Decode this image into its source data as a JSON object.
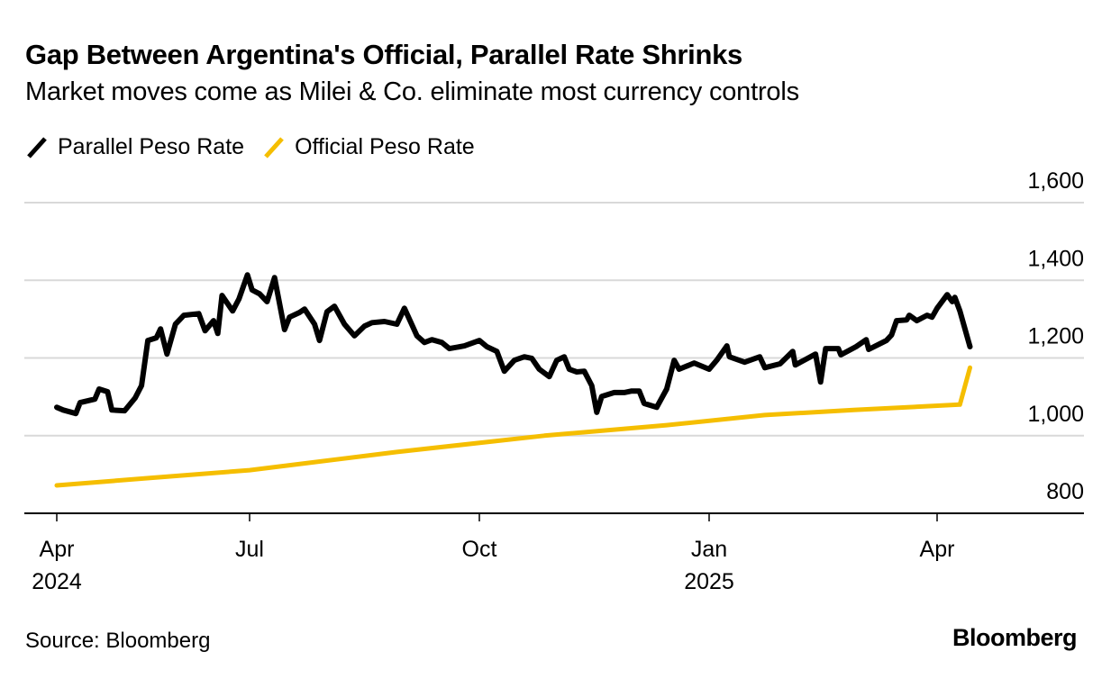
{
  "chart_data": {
    "type": "line",
    "title": "Gap Between Argentina's Official, Parallel Rate Shrinks",
    "subtitle": "Market moves come as Milei & Co. eliminate most currency controls",
    "xlabel": "",
    "ylabel": "",
    "ylim": [
      800,
      1600
    ],
    "yticks": [
      800,
      1000,
      1200,
      1400,
      1600
    ],
    "ytick_labels": [
      "800",
      "1,000",
      "1,200",
      "1,400",
      "1,600"
    ],
    "xlim": [
      "2024-03-19",
      "2025-06-17"
    ],
    "xticks": [
      {
        "date": "2024-04-01",
        "label": "Apr",
        "sublabel": "2024"
      },
      {
        "date": "2024-07-01",
        "label": "Jul",
        "sublabel": ""
      },
      {
        "date": "2024-10-01",
        "label": "Oct",
        "sublabel": ""
      },
      {
        "date": "2025-01-01",
        "label": "Jan",
        "sublabel": "2025"
      },
      {
        "date": "2025-04-01",
        "label": "Apr",
        "sublabel": ""
      }
    ],
    "grid": true,
    "legend_position": "top-left",
    "series": [
      {
        "name": "Parallel Peso Rate",
        "color": "#000000",
        "points": [
          [
            "2024-04-01",
            1073
          ],
          [
            "2024-04-04",
            1066
          ],
          [
            "2024-04-10",
            1057
          ],
          [
            "2024-04-12",
            1085
          ],
          [
            "2024-04-19",
            1094
          ],
          [
            "2024-04-21",
            1120
          ],
          [
            "2024-04-25",
            1113
          ],
          [
            "2024-04-27",
            1066
          ],
          [
            "2024-05-03",
            1064
          ],
          [
            "2024-05-08",
            1097
          ],
          [
            "2024-05-11",
            1129
          ],
          [
            "2024-05-14",
            1245
          ],
          [
            "2024-05-18",
            1252
          ],
          [
            "2024-05-20",
            1275
          ],
          [
            "2024-05-23",
            1210
          ],
          [
            "2024-05-27",
            1287
          ],
          [
            "2024-05-31",
            1310
          ],
          [
            "2024-06-07",
            1314
          ],
          [
            "2024-06-10",
            1270
          ],
          [
            "2024-06-14",
            1296
          ],
          [
            "2024-06-16",
            1263
          ],
          [
            "2024-06-18",
            1361
          ],
          [
            "2024-06-23",
            1321
          ],
          [
            "2024-06-26",
            1352
          ],
          [
            "2024-06-30",
            1414
          ],
          [
            "2024-07-02",
            1375
          ],
          [
            "2024-07-05",
            1365
          ],
          [
            "2024-07-08",
            1345
          ],
          [
            "2024-07-11",
            1407
          ],
          [
            "2024-07-15",
            1273
          ],
          [
            "2024-07-17",
            1305
          ],
          [
            "2024-07-21",
            1317
          ],
          [
            "2024-07-23",
            1326
          ],
          [
            "2024-07-27",
            1287
          ],
          [
            "2024-07-29",
            1245
          ],
          [
            "2024-08-01",
            1319
          ],
          [
            "2024-08-04",
            1333
          ],
          [
            "2024-08-08",
            1287
          ],
          [
            "2024-08-12",
            1257
          ],
          [
            "2024-08-16",
            1282
          ],
          [
            "2024-08-19",
            1291
          ],
          [
            "2024-08-24",
            1294
          ],
          [
            "2024-08-29",
            1287
          ],
          [
            "2024-09-01",
            1328
          ],
          [
            "2024-09-06",
            1257
          ],
          [
            "2024-09-09",
            1240
          ],
          [
            "2024-09-12",
            1247
          ],
          [
            "2024-09-16",
            1240
          ],
          [
            "2024-09-19",
            1224
          ],
          [
            "2024-09-25",
            1231
          ],
          [
            "2024-10-01",
            1245
          ],
          [
            "2024-10-04",
            1229
          ],
          [
            "2024-10-08",
            1217
          ],
          [
            "2024-10-11",
            1166
          ],
          [
            "2024-10-15",
            1194
          ],
          [
            "2024-10-19",
            1203
          ],
          [
            "2024-10-22",
            1199
          ],
          [
            "2024-10-25",
            1171
          ],
          [
            "2024-10-29",
            1152
          ],
          [
            "2024-11-01",
            1194
          ],
          [
            "2024-11-04",
            1203
          ],
          [
            "2024-11-06",
            1171
          ],
          [
            "2024-11-09",
            1164
          ],
          [
            "2024-11-12",
            1166
          ],
          [
            "2024-11-15",
            1129
          ],
          [
            "2024-11-17",
            1060
          ],
          [
            "2024-11-19",
            1101
          ],
          [
            "2024-11-24",
            1111
          ],
          [
            "2024-11-28",
            1111
          ],
          [
            "2024-12-01",
            1115
          ],
          [
            "2024-12-04",
            1115
          ],
          [
            "2024-12-06",
            1083
          ],
          [
            "2024-12-11",
            1073
          ],
          [
            "2024-12-15",
            1120
          ],
          [
            "2024-12-18",
            1194
          ],
          [
            "2024-12-20",
            1171
          ],
          [
            "2024-12-26",
            1187
          ],
          [
            "2025-01-01",
            1171
          ],
          [
            "2025-01-04",
            1194
          ],
          [
            "2025-01-08",
            1231
          ],
          [
            "2025-01-09",
            1203
          ],
          [
            "2025-01-15",
            1189
          ],
          [
            "2025-01-21",
            1203
          ],
          [
            "2025-01-23",
            1175
          ],
          [
            "2025-01-29",
            1185
          ],
          [
            "2025-02-03",
            1217
          ],
          [
            "2025-02-04",
            1182
          ],
          [
            "2025-02-12",
            1210
          ],
          [
            "2025-02-14",
            1138
          ],
          [
            "2025-02-16",
            1224
          ],
          [
            "2025-02-21",
            1224
          ],
          [
            "2025-02-22",
            1208
          ],
          [
            "2025-02-28",
            1229
          ],
          [
            "2025-03-04",
            1247
          ],
          [
            "2025-03-05",
            1222
          ],
          [
            "2025-03-12",
            1245
          ],
          [
            "2025-03-14",
            1259
          ],
          [
            "2025-03-16",
            1296
          ],
          [
            "2025-03-20",
            1298
          ],
          [
            "2025-03-21",
            1310
          ],
          [
            "2025-03-24",
            1296
          ],
          [
            "2025-03-28",
            1310
          ],
          [
            "2025-03-30",
            1305
          ],
          [
            "2025-04-01",
            1328
          ],
          [
            "2025-04-05",
            1363
          ],
          [
            "2025-04-07",
            1345
          ],
          [
            "2025-04-08",
            1356
          ],
          [
            "2025-04-10",
            1321
          ],
          [
            "2025-04-14",
            1229
          ]
        ]
      },
      {
        "name": "Official Peso Rate",
        "color": "#F5BE00",
        "points": [
          [
            "2024-04-01",
            872
          ],
          [
            "2024-05-15",
            891
          ],
          [
            "2024-07-01",
            911
          ],
          [
            "2024-08-29",
            958
          ],
          [
            "2024-10-27",
            1000
          ],
          [
            "2024-12-15",
            1027
          ],
          [
            "2025-01-23",
            1053
          ],
          [
            "2025-02-27",
            1066
          ],
          [
            "2025-04-10",
            1080
          ],
          [
            "2025-04-14",
            1175
          ]
        ]
      }
    ],
    "source": "Source: Bloomberg",
    "brand": "Bloomberg"
  }
}
